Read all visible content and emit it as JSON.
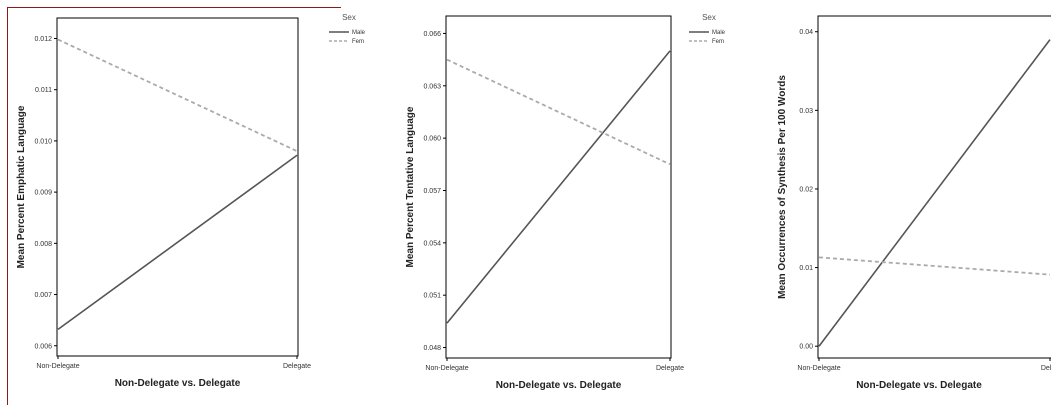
{
  "chart_data": [
    {
      "type": "line",
      "categories": [
        "Non-Delegate",
        "Delegate"
      ],
      "xlabel": "Non-Delegate vs. Delegate",
      "ylabel": "Mean Percent Emphatic Language",
      "ylim": [
        0.0058,
        0.0124
      ],
      "yticks": [
        "0.006",
        "0.007",
        "0.008",
        "0.009",
        "0.010",
        "0.011",
        "0.012"
      ],
      "legend_title": "Sex",
      "legend_position": "top-right",
      "series": [
        {
          "name": "Male",
          "values": [
            0.00632,
            0.00972
          ],
          "style": "solid",
          "color": "#555555"
        },
        {
          "name": "Fem",
          "values": [
            0.01198,
            0.0098
          ],
          "style": "dashed",
          "color": "#aaaaaa"
        }
      ]
    },
    {
      "type": "line",
      "categories": [
        "Non-Delegate",
        "Delegate"
      ],
      "xlabel": "Non-Delegate vs. Delegate",
      "ylabel": "Mean Percent Tentative Language",
      "ylim": [
        0.0474,
        0.067
      ],
      "yticks": [
        "0.048",
        "0.051",
        "0.054",
        "0.057",
        "0.060",
        "0.063",
        "0.066"
      ],
      "legend_title": "Sex",
      "legend_position": "top-right",
      "series": [
        {
          "name": "Male",
          "values": [
            0.0494,
            0.065
          ],
          "style": "solid",
          "color": "#555555"
        },
        {
          "name": "Fem",
          "values": [
            0.0645,
            0.0585
          ],
          "style": "dashed",
          "color": "#aaaaaa"
        }
      ]
    },
    {
      "type": "line",
      "categories": [
        "Non-Delegate",
        "Delegate"
      ],
      "xlabel": "Non-Delegate vs. Delegate",
      "ylabel": "Mean Occurrences of Synthesis Per 100 Words",
      "ylim": [
        -0.0015,
        0.042
      ],
      "yticks": [
        "0.00",
        "0.01",
        "0.02",
        "0.03",
        "0.04"
      ],
      "series": [
        {
          "name": "Male",
          "values": [
            0.0,
            0.039
          ],
          "style": "solid",
          "color": "#555555"
        },
        {
          "name": "Fem",
          "values": [
            0.0113,
            0.0091
          ],
          "style": "dashed",
          "color": "#aaaaaa"
        }
      ]
    }
  ],
  "x_tick_labels": [
    [
      "Non-Delegate",
      "Delegate"
    ],
    [
      "Non-Delegate",
      "Delegate"
    ],
    [
      "Non-Delegate",
      "Deleg"
    ]
  ],
  "legend_labels": [
    {
      "title": "Sex",
      "male": "Male",
      "female": "Fem"
    },
    {
      "title": "Sex",
      "male": "Male",
      "female": "Fem"
    }
  ],
  "colors": {
    "frame_border": "#8b1a1a",
    "male_line": "#555555",
    "female_line": "#aaaaaa"
  }
}
